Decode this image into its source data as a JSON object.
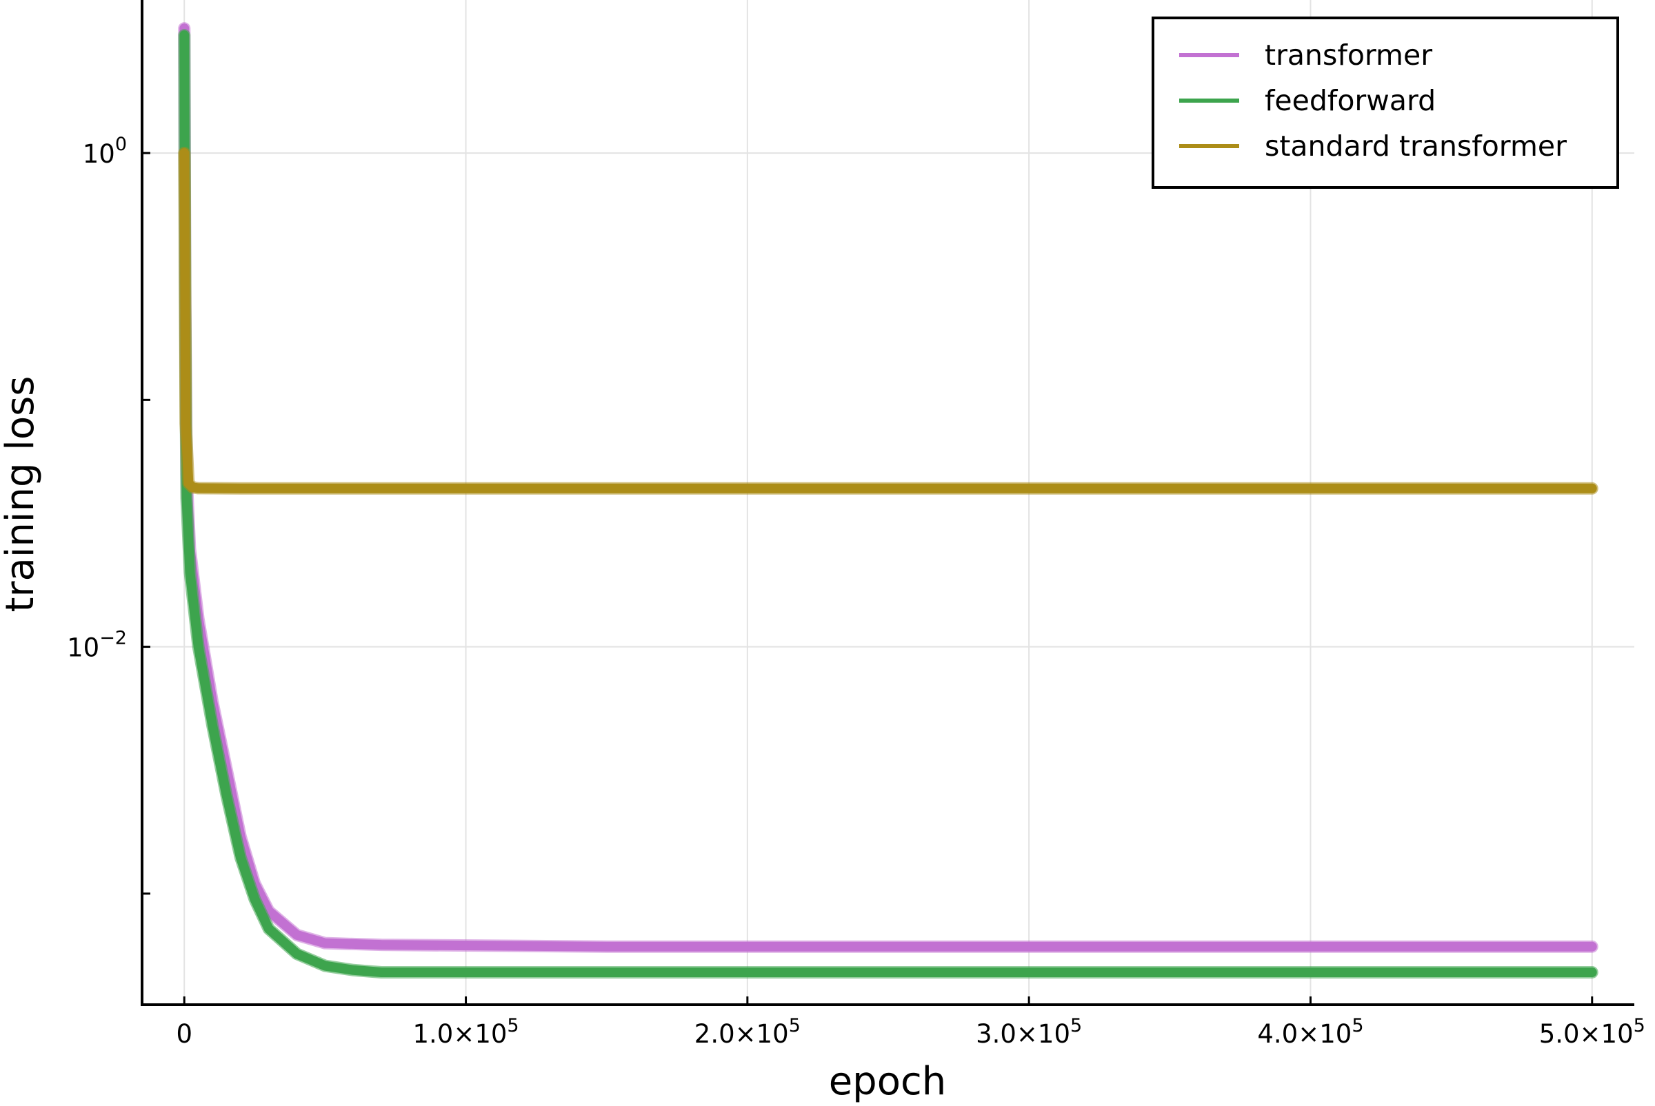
{
  "chart_data": {
    "type": "line",
    "title": "",
    "xlabel": "epoch",
    "ylabel": "training loss",
    "xlim": [
      -15000,
      515000
    ],
    "ylim_log10": [
      -3.45,
      0.62
    ],
    "yscale": "log",
    "grid": true,
    "legend_position": "top-right",
    "x_ticks": [
      {
        "value": 0,
        "label": "0",
        "exponent": ""
      },
      {
        "value": 100000,
        "label": "1.0×10",
        "exponent": "5"
      },
      {
        "value": 200000,
        "label": "2.0×10",
        "exponent": "5"
      },
      {
        "value": 300000,
        "label": "3.0×10",
        "exponent": "5"
      },
      {
        "value": 400000,
        "label": "4.0×10",
        "exponent": "5"
      },
      {
        "value": 500000,
        "label": "5.0×10",
        "exponent": "5"
      }
    ],
    "y_ticks_labeled": [
      {
        "value": 1,
        "label": "10",
        "exponent": "0"
      },
      {
        "value": 0.01,
        "label": "10",
        "exponent": "−2"
      }
    ],
    "y_ticks_minor": [
      0.1,
      0.001
    ],
    "series": [
      {
        "name": "transformer",
        "color": "#c271d2",
        "band_width": 7,
        "points": [
          [
            0,
            3.2
          ],
          [
            300,
            0.3
          ],
          [
            800,
            0.05
          ],
          [
            2000,
            0.025
          ],
          [
            5000,
            0.013
          ],
          [
            10000,
            0.006
          ],
          [
            15000,
            0.0032
          ],
          [
            20000,
            0.0017
          ],
          [
            25000,
            0.0011
          ],
          [
            30000,
            0.00085
          ],
          [
            40000,
            0.00068
          ],
          [
            50000,
            0.00063
          ],
          [
            70000,
            0.00062
          ],
          [
            150000,
            0.00061
          ],
          [
            300000,
            0.00061
          ],
          [
            500000,
            0.00061
          ]
        ]
      },
      {
        "name": "feedforward",
        "color": "#3da44d",
        "band_width": 7,
        "points": [
          [
            0,
            3.0
          ],
          [
            300,
            0.25
          ],
          [
            800,
            0.04
          ],
          [
            2000,
            0.02
          ],
          [
            5000,
            0.01
          ],
          [
            10000,
            0.0048
          ],
          [
            15000,
            0.0025
          ],
          [
            20000,
            0.0014
          ],
          [
            25000,
            0.00095
          ],
          [
            30000,
            0.00072
          ],
          [
            40000,
            0.00057
          ],
          [
            50000,
            0.00051
          ],
          [
            60000,
            0.00049
          ],
          [
            70000,
            0.00048
          ],
          [
            150000,
            0.00048
          ],
          [
            300000,
            0.00048
          ],
          [
            500000,
            0.00048
          ]
        ]
      },
      {
        "name": "standard transformer",
        "color": "#ac8d18",
        "band_width": 7,
        "points": [
          [
            0,
            1.0
          ],
          [
            150,
            0.55
          ],
          [
            500,
            0.08
          ],
          [
            1500,
            0.046
          ],
          [
            3000,
            0.0442
          ],
          [
            5000,
            0.0439
          ],
          [
            20000,
            0.0438
          ],
          [
            100000,
            0.0438
          ],
          [
            300000,
            0.0438
          ],
          [
            500000,
            0.0438
          ]
        ]
      }
    ]
  }
}
